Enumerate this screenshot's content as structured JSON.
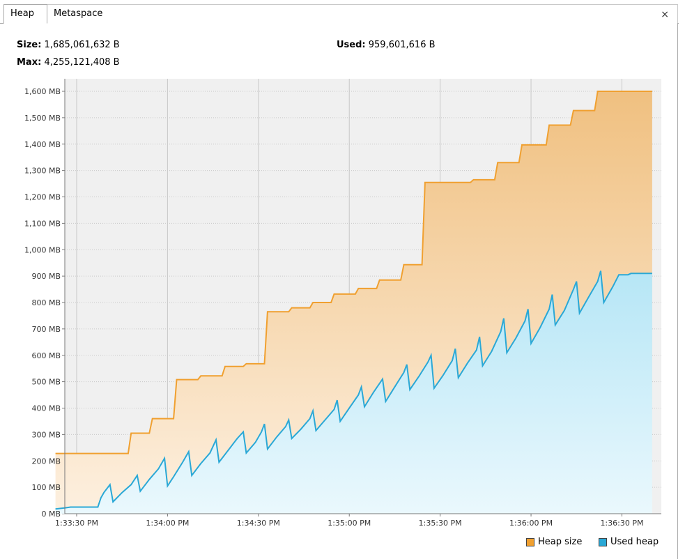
{
  "tabs": [
    {
      "label": "Heap",
      "selected": true
    },
    {
      "label": "Metaspace",
      "selected": false
    }
  ],
  "close_icon": "×",
  "stats": {
    "size_label": "Size:",
    "size_value": "1,685,061,632 B",
    "used_label": "Used:",
    "used_value": "959,601,616 B",
    "max_label": "Max:",
    "max_value": "4,255,121,408 B"
  },
  "legend": {
    "heap_size": "Heap size",
    "used_heap": "Used heap"
  },
  "colors": {
    "heap_size_line": "#f0a030",
    "used_heap_line": "#2aa8d6",
    "plot_bg": "#f0f0f0"
  },
  "chart_data": {
    "type": "area",
    "title": "",
    "xlabel": "",
    "ylabel": "",
    "ylim": [
      0,
      1600
    ],
    "y_ticks": [
      "0 MB",
      "100 MB",
      "200 MB",
      "300 MB",
      "400 MB",
      "500 MB",
      "600 MB",
      "700 MB",
      "800 MB",
      "900 MB",
      "1,000 MB",
      "1,100 MB",
      "1,200 MB",
      "1,300 MB",
      "1,400 MB",
      "1,500 MB",
      "1,600 MB"
    ],
    "x_ticks": [
      "1:33:30 PM",
      "1:34:00 PM",
      "1:34:30 PM",
      "1:35:00 PM",
      "1:35:30 PM",
      "1:36:00 PM",
      "1:36:30 PM"
    ],
    "x_unit": "seconds after 1:33:30 PM",
    "xlim": [
      -7,
      190
    ],
    "grid": true,
    "legend_position": "bottom-right",
    "series": [
      {
        "name": "Heap size",
        "points": [
          [
            -7,
            228
          ],
          [
            17,
            228
          ],
          [
            18,
            305
          ],
          [
            24,
            305
          ],
          [
            25,
            360
          ],
          [
            32,
            360
          ],
          [
            33,
            508
          ],
          [
            40,
            508
          ],
          [
            41,
            522
          ],
          [
            48,
            522
          ],
          [
            49,
            558
          ],
          [
            55,
            558
          ],
          [
            56,
            568
          ],
          [
            62,
            568
          ],
          [
            63,
            765
          ],
          [
            70,
            765
          ],
          [
            71,
            780
          ],
          [
            77,
            780
          ],
          [
            78,
            800
          ],
          [
            84,
            800
          ],
          [
            85,
            832
          ],
          [
            92,
            832
          ],
          [
            93,
            853
          ],
          [
            99,
            853
          ],
          [
            100,
            885
          ],
          [
            107,
            885
          ],
          [
            108,
            943
          ],
          [
            114,
            943
          ],
          [
            115,
            1255
          ],
          [
            130,
            1255
          ],
          [
            131,
            1265
          ],
          [
            138,
            1265
          ],
          [
            139,
            1330
          ],
          [
            146,
            1330
          ],
          [
            147,
            1397
          ],
          [
            155,
            1397
          ],
          [
            156,
            1472
          ],
          [
            163,
            1472
          ],
          [
            164,
            1527
          ],
          [
            171,
            1527
          ],
          [
            172,
            1600
          ],
          [
            190,
            1600
          ]
        ]
      },
      {
        "name": "Used heap",
        "points": [
          [
            -7,
            18
          ],
          [
            -4,
            22
          ],
          [
            -2,
            25
          ],
          [
            7,
            25
          ],
          [
            8,
            60
          ],
          [
            9,
            80
          ],
          [
            11,
            110
          ],
          [
            12,
            45
          ],
          [
            15,
            80
          ],
          [
            18,
            110
          ],
          [
            20,
            145
          ],
          [
            21,
            85
          ],
          [
            24,
            130
          ],
          [
            27,
            170
          ],
          [
            29,
            210
          ],
          [
            30,
            105
          ],
          [
            32,
            140
          ],
          [
            35,
            195
          ],
          [
            37,
            235
          ],
          [
            38,
            145
          ],
          [
            41,
            190
          ],
          [
            44,
            230
          ],
          [
            46,
            280
          ],
          [
            47,
            195
          ],
          [
            50,
            240
          ],
          [
            53,
            285
          ],
          [
            55,
            310
          ],
          [
            56,
            230
          ],
          [
            59,
            270
          ],
          [
            61,
            310
          ],
          [
            62,
            340
          ],
          [
            63,
            245
          ],
          [
            66,
            290
          ],
          [
            69,
            330
          ],
          [
            70,
            355
          ],
          [
            71,
            285
          ],
          [
            74,
            320
          ],
          [
            77,
            360
          ],
          [
            78,
            390
          ],
          [
            79,
            315
          ],
          [
            82,
            355
          ],
          [
            85,
            395
          ],
          [
            86,
            430
          ],
          [
            87,
            350
          ],
          [
            90,
            400
          ],
          [
            93,
            450
          ],
          [
            94,
            480
          ],
          [
            95,
            405
          ],
          [
            98,
            460
          ],
          [
            101,
            510
          ],
          [
            102,
            425
          ],
          [
            105,
            480
          ],
          [
            108,
            535
          ],
          [
            109,
            565
          ],
          [
            110,
            470
          ],
          [
            113,
            520
          ],
          [
            116,
            575
          ],
          [
            117,
            600
          ],
          [
            118,
            475
          ],
          [
            121,
            525
          ],
          [
            124,
            580
          ],
          [
            125,
            625
          ],
          [
            126,
            515
          ],
          [
            129,
            570
          ],
          [
            132,
            620
          ],
          [
            133,
            670
          ],
          [
            134,
            560
          ],
          [
            137,
            615
          ],
          [
            140,
            690
          ],
          [
            141,
            740
          ],
          [
            142,
            610
          ],
          [
            145,
            665
          ],
          [
            148,
            730
          ],
          [
            149,
            775
          ],
          [
            150,
            645
          ],
          [
            153,
            705
          ],
          [
            156,
            775
          ],
          [
            157,
            830
          ],
          [
            158,
            715
          ],
          [
            161,
            770
          ],
          [
            164,
            850
          ],
          [
            165,
            880
          ],
          [
            166,
            760
          ],
          [
            169,
            820
          ],
          [
            172,
            880
          ],
          [
            173,
            920
          ],
          [
            174,
            800
          ],
          [
            177,
            860
          ],
          [
            179,
            905
          ],
          [
            182,
            905
          ],
          [
            183,
            910
          ],
          [
            190,
            910
          ]
        ]
      }
    ]
  }
}
